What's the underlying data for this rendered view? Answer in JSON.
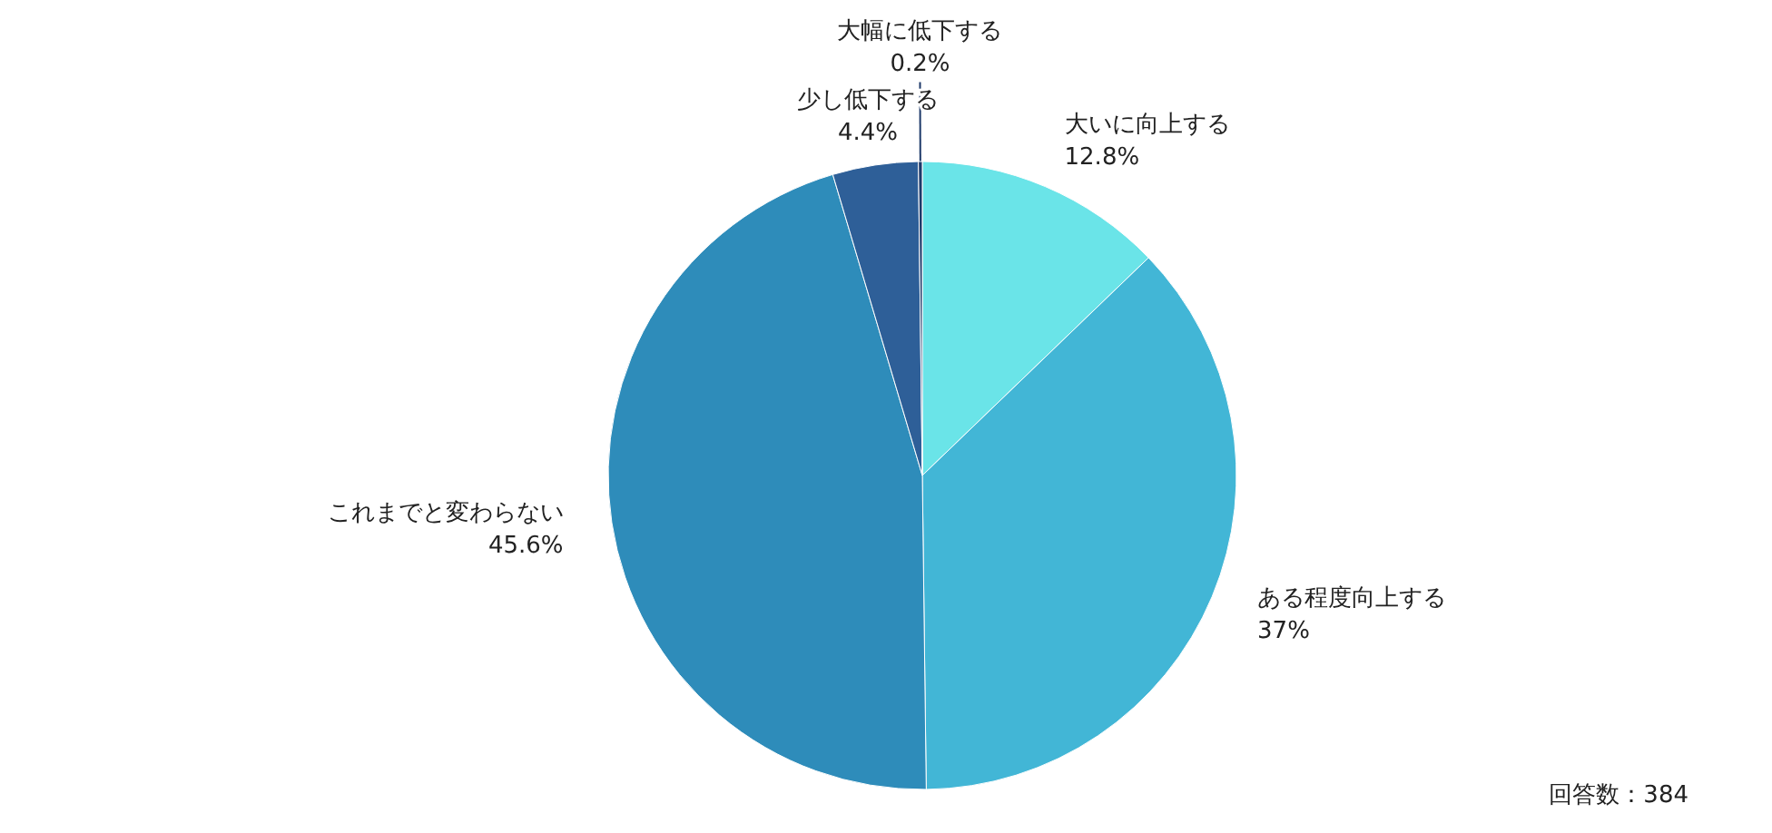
{
  "chart_data": {
    "type": "pie",
    "categories": [
      "大いに向上する",
      "ある程度向上する",
      "これまでと変わらない",
      "少し低下する",
      "大幅に低下する"
    ],
    "values": [
      12.8,
      37,
      45.6,
      4.4,
      0.2
    ],
    "colors": [
      "#6ae4e8",
      "#42b6d6",
      "#2e8cba",
      "#2e5f98",
      "#1e3a6a"
    ],
    "value_labels": [
      "12.8%",
      "37%",
      "45.6%",
      "4.4%",
      "0.2%"
    ],
    "annotations": [
      "回答数：384"
    ]
  }
}
